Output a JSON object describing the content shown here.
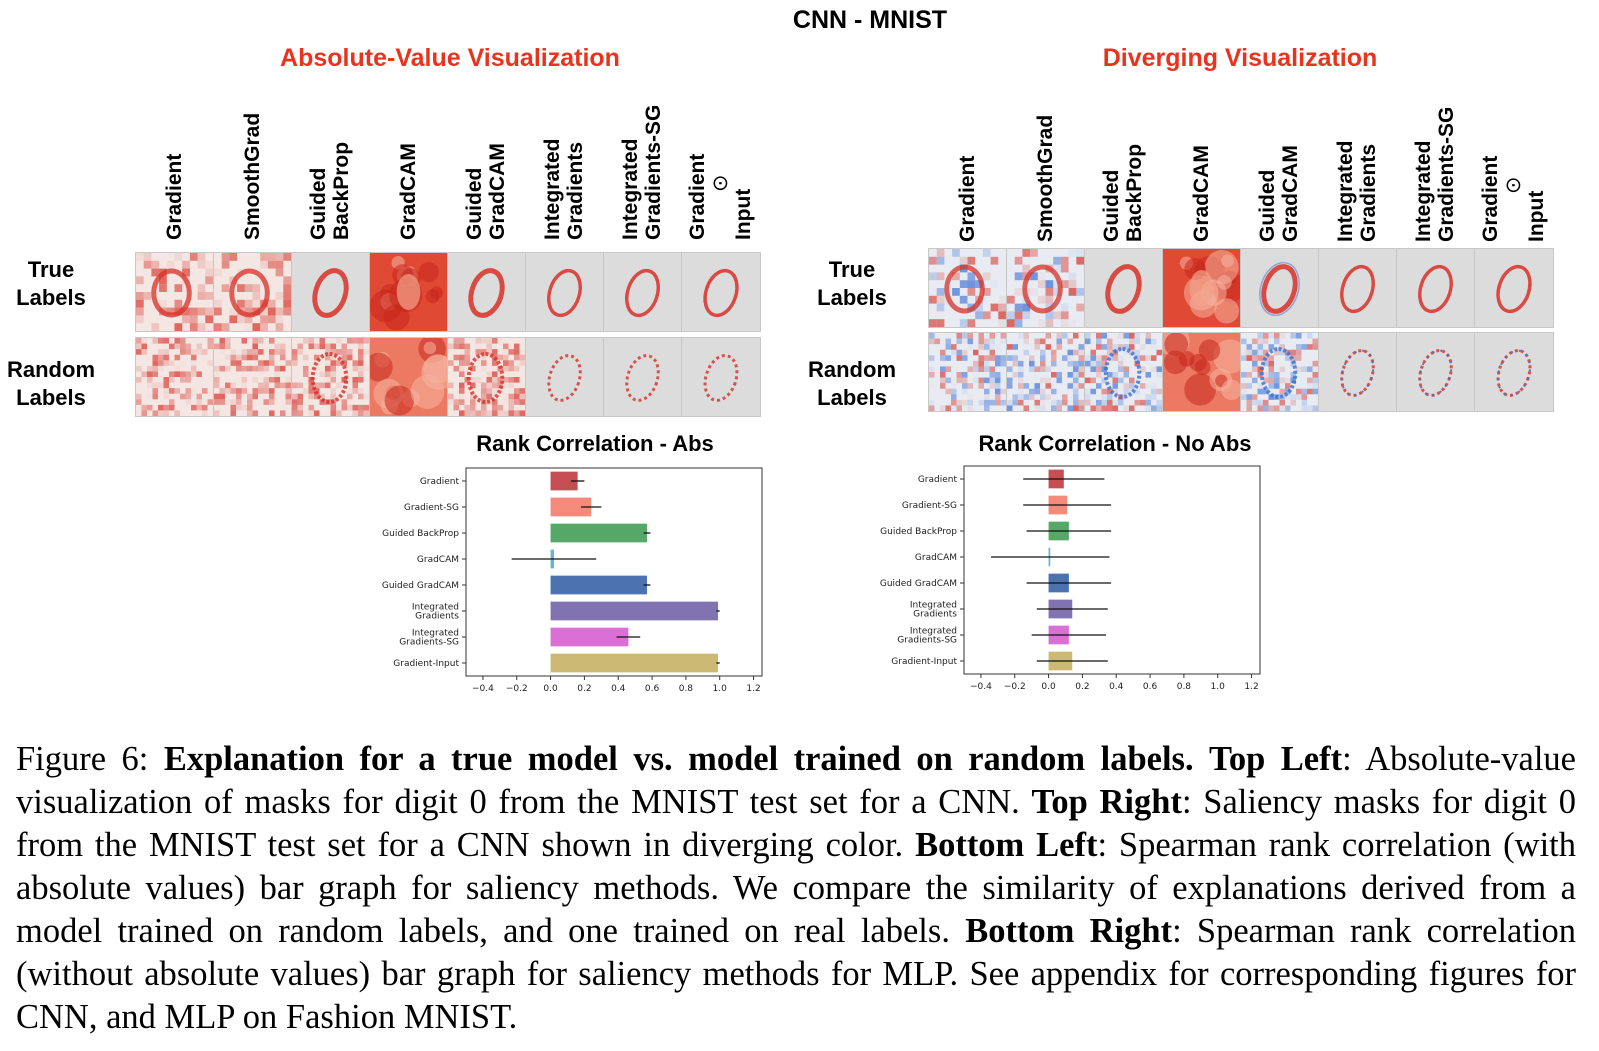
{
  "figure": {
    "main_title": "CNN - MNIST",
    "left_panel_title": "Absolute-Value Visualization",
    "right_panel_title": "Diverging Visualization",
    "method_headers": [
      [
        "Gradient"
      ],
      [
        "SmoothGrad"
      ],
      [
        "Guided",
        "BackProp"
      ],
      [
        "GradCAM"
      ],
      [
        "Guided",
        "GradCAM"
      ],
      [
        "Integrated",
        "Gradients"
      ],
      [
        "Integrated",
        "Gradients-SG"
      ],
      [
        "Gradient",
        "⊙",
        "Input"
      ]
    ],
    "row_labels": {
      "true": [
        "True",
        "Labels"
      ],
      "random": [
        "Random",
        "Labels"
      ]
    },
    "colors": {
      "panel_title": "#e8331f",
      "abs_heat": "#d73027",
      "div_pos": "#d73027",
      "div_neg": "#3b6fd4",
      "cell_bg": "#d9d9d9"
    }
  },
  "chart_data": [
    {
      "type": "bar",
      "orientation": "horizontal",
      "title": "Rank Correlation - Abs",
      "categories": [
        "Gradient",
        "Gradient-SG",
        "Guided BackProp",
        "GradCAM",
        "Guided GradCAM",
        "Integrated\nGradients",
        "Integrated\nGradients-SG",
        "Gradient-Input"
      ],
      "values": [
        0.16,
        0.24,
        0.57,
        0.02,
        0.57,
        0.99,
        0.46,
        0.99
      ],
      "errors": [
        0.04,
        0.06,
        0.02,
        0.25,
        0.02,
        0.01,
        0.07,
        0.01
      ],
      "colors": [
        "#c44e52",
        "#f58a7a",
        "#55a868",
        "#64b5cd",
        "#4c72b0",
        "#8172b2",
        "#da70d6",
        "#ccb974"
      ],
      "xticks": [
        "−0.4",
        "−0.2",
        "0.0",
        "0.2",
        "0.4",
        "0.6",
        "0.8",
        "1.0",
        "1.2"
      ],
      "xlim": [
        -0.5,
        1.25
      ]
    },
    {
      "type": "bar",
      "orientation": "horizontal",
      "title": "Rank Correlation - No Abs",
      "categories": [
        "Gradient",
        "Gradient-SG",
        "Guided BackProp",
        "GradCAM",
        "Guided GradCAM",
        "Integrated\nGradients",
        "Integrated\nGradients-SG",
        "Gradient-Input"
      ],
      "values": [
        0.09,
        0.11,
        0.12,
        0.01,
        0.12,
        0.14,
        0.12,
        0.14
      ],
      "errors": [
        0.24,
        0.26,
        0.25,
        0.35,
        0.25,
        0.21,
        0.22,
        0.21
      ],
      "colors": [
        "#c44e52",
        "#f58a7a",
        "#55a868",
        "#64b5cd",
        "#4c72b0",
        "#8172b2",
        "#da70d6",
        "#ccb974"
      ],
      "xticks": [
        "−0.4",
        "−0.2",
        "0.0",
        "0.2",
        "0.4",
        "0.6",
        "0.8",
        "1.0",
        "1.2"
      ],
      "xlim": [
        -0.5,
        1.25
      ]
    }
  ],
  "caption": {
    "figure_label": "Figure 6:  ",
    "bold_intro": "Explanation for a true model vs. model trained on random labels.",
    "top_left_label": "Top Left",
    "top_left_text": ": Absolute-value visualization of masks for digit 0 from the MNIST test set for a CNN.",
    "top_right_label": "Top Right",
    "top_right_text": ": Saliency masks for digit 0 from the MNIST test set for a CNN shown in diverging color.",
    "bottom_left_label": "Bottom Left",
    "bottom_left_text": ": Spearman rank correlation (with absolute values) bar graph for saliency methods. We compare the similarity of explanations derived from a model trained on random labels, and one trained on real labels.",
    "bottom_right_label": "Bottom Right",
    "bottom_right_text": ": Spearman rank correlation (without absolute values) bar graph for saliency methods for MLP. See appendix for corresponding figures for CNN, and MLP on Fashion MNIST."
  }
}
